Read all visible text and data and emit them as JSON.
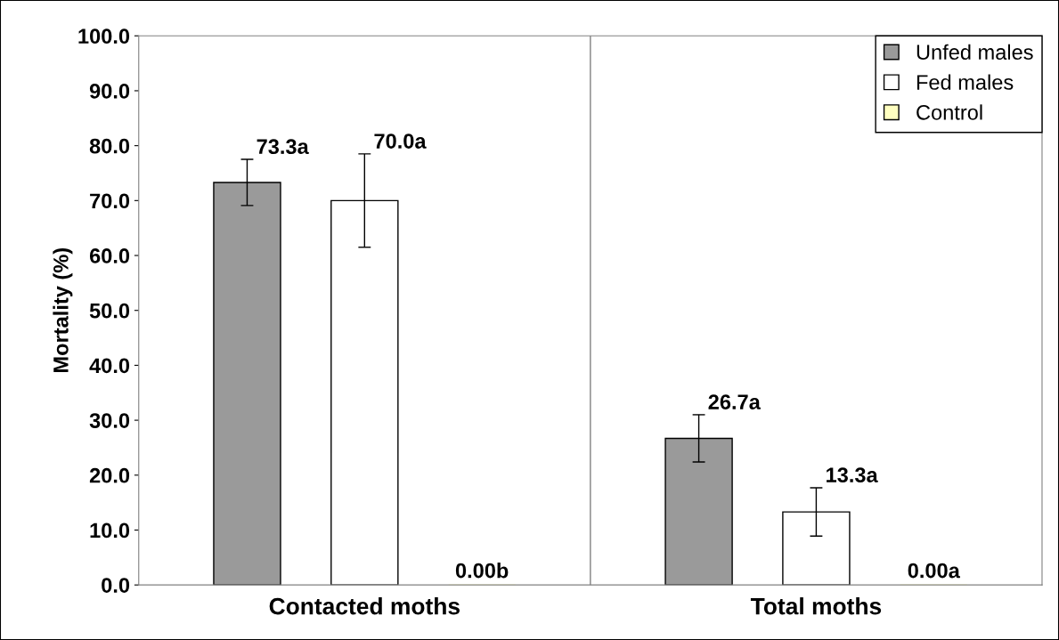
{
  "chart_data": {
    "type": "bar",
    "ylabel": "Mortality (%)",
    "categories": [
      "Contacted moths",
      "Total moths"
    ],
    "series": [
      {
        "name": "Unfed males",
        "color": "#9a9a9a",
        "values": [
          73.3,
          26.7
        ],
        "errors": [
          4.2,
          4.3
        ],
        "value_labels": [
          "73.3a",
          "26.7a"
        ]
      },
      {
        "name": "Fed males",
        "color": "#ffffff",
        "values": [
          70.0,
          13.3
        ],
        "errors": [
          8.5,
          4.4
        ],
        "value_labels": [
          "70.0a",
          "13.3a"
        ]
      },
      {
        "name": "Control",
        "color": "#ffffc0",
        "values": [
          0.0,
          0.0
        ],
        "errors": [
          null,
          null
        ],
        "value_labels": [
          "0.00b",
          "0.00a"
        ]
      }
    ],
    "ylim": [
      0,
      100
    ],
    "yticks": [
      {
        "value": 0,
        "label": "0.0"
      },
      {
        "value": 10,
        "label": "10.0"
      },
      {
        "value": 20,
        "label": "20.0"
      },
      {
        "value": 30,
        "label": "30.0"
      },
      {
        "value": 40,
        "label": "40.0"
      },
      {
        "value": 50,
        "label": "50.0"
      },
      {
        "value": 60,
        "label": "60.0"
      },
      {
        "value": 70,
        "label": "70.0"
      },
      {
        "value": 80,
        "label": "80.0"
      },
      {
        "value": 90,
        "label": "90.0"
      },
      {
        "value": 100,
        "label": "100.0"
      }
    ],
    "grid": "x",
    "legend": "top right"
  }
}
